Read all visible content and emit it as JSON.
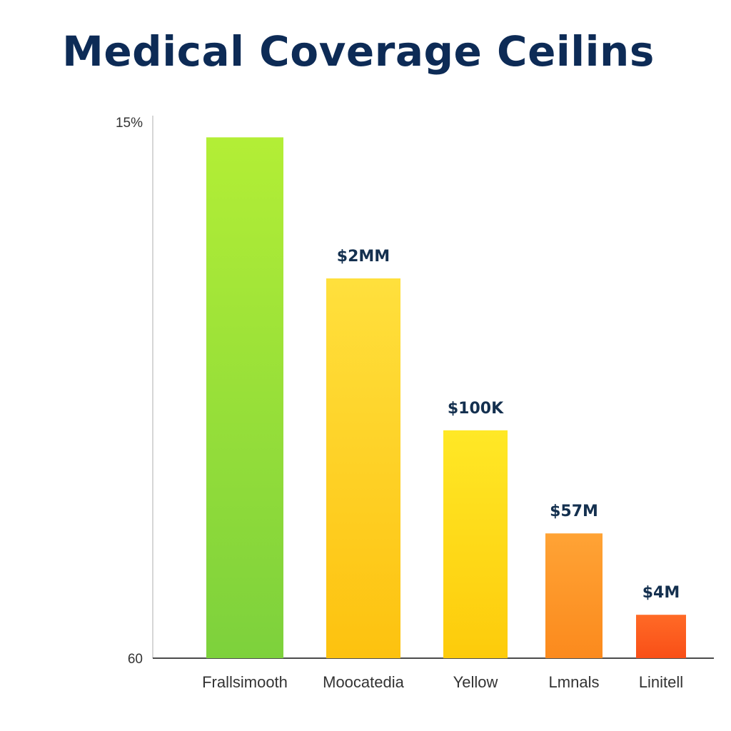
{
  "chart_data": {
    "type": "bar",
    "title": "Medical Coverage Ceilins",
    "xlabel": "",
    "ylabel": "",
    "y_tick_labels": [
      "15%",
      "60"
    ],
    "categories": [
      "Frallsimooth",
      "Moocatedia",
      "Yellow",
      "Lmnals",
      "Linitell"
    ],
    "values": [
      96,
      70,
      42,
      23,
      8
    ],
    "value_labels": [
      "",
      "$2MM",
      "$100K",
      "$57M",
      "$4M"
    ],
    "ylim": [
      0,
      100
    ],
    "grid": false,
    "legend": "none",
    "colors": [
      [
        "#b3ee36",
        "#7dd13c"
      ],
      [
        "#ffe03d",
        "#fdc20f"
      ],
      [
        "#ffe826",
        "#fdcb0b"
      ],
      [
        "#ffa335",
        "#fb8a1d"
      ],
      [
        "#ff6a26",
        "#f94f17"
      ]
    ]
  }
}
